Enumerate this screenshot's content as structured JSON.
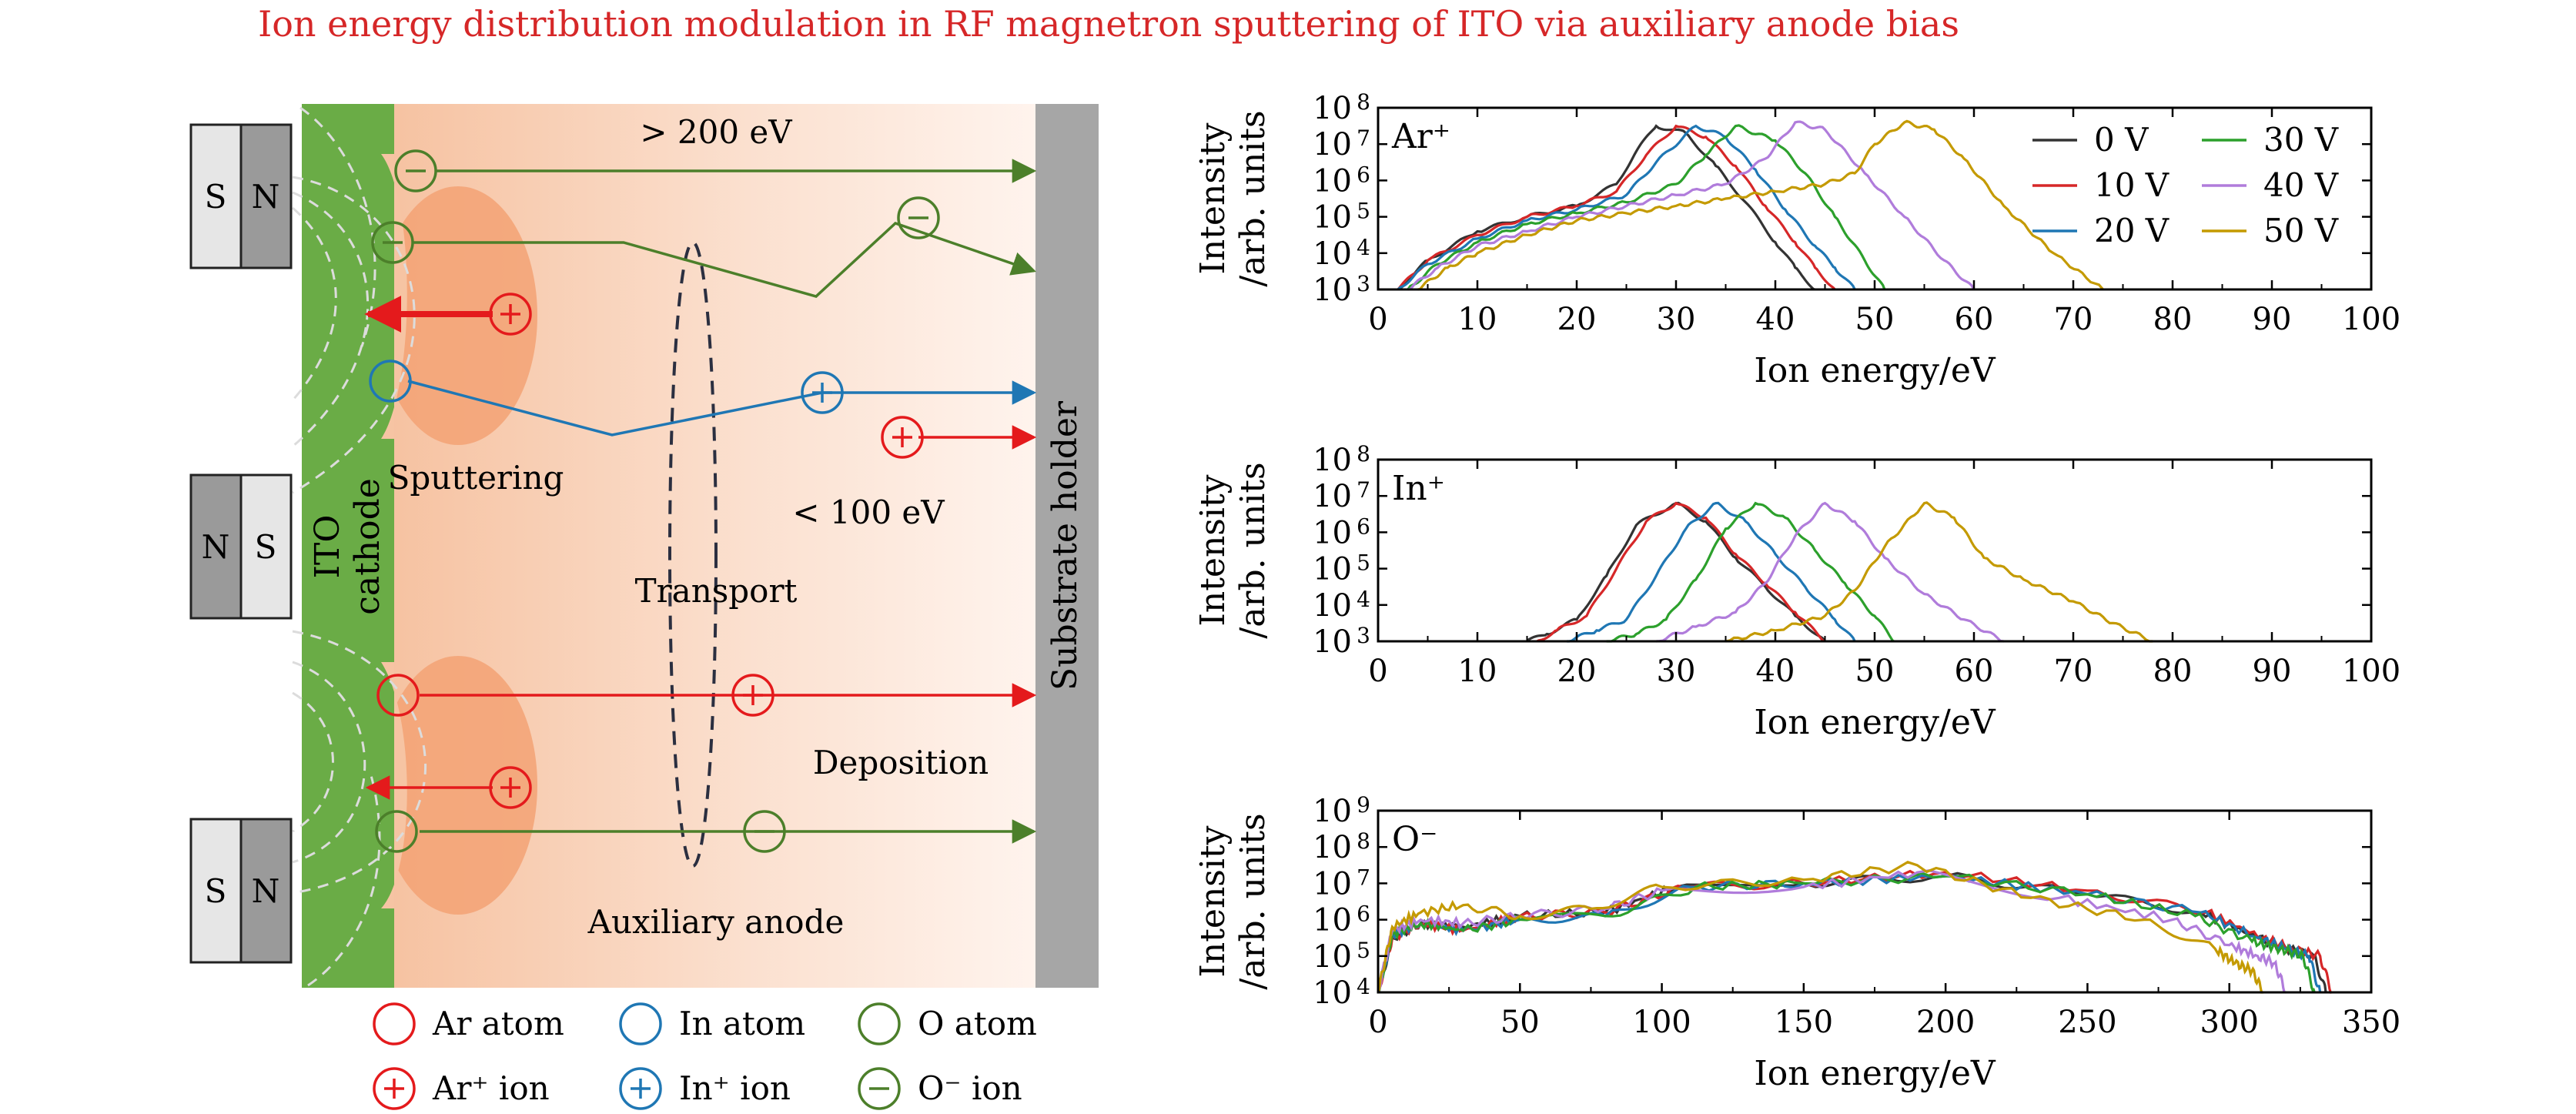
{
  "title": "Ion energy distribution modulation in RF magnetron sputtering of ITO via auxiliary anode bias",
  "colors": {
    "red": "#e41a1c",
    "blue": "#1f77b4",
    "green": "#4c7f2a",
    "cathode": "#6aac46",
    "holder": "#a6a6a6",
    "plasma": "#f4a97c",
    "v0": "#333333",
    "v10": "#d62728",
    "v20": "#1f77b4",
    "v30": "#2ca02c",
    "v40": "#b07cdb",
    "v50": "#c49a00"
  },
  "schematic": {
    "magnets": [
      {
        "left": "S",
        "right": "N"
      },
      {
        "left": "N",
        "right": "S"
      },
      {
        "left": "S",
        "right": "N"
      }
    ],
    "cathode_label_1": "ITO",
    "cathode_label_2": "cathode",
    "holder_label": "Substrate holder",
    "high_energy_label": "> 200 eV",
    "low_energy_label": "< 100 eV",
    "sputtering_label": "Sputtering",
    "transport_label": "Transport",
    "deposition_label": "Deposition",
    "anode_label": "Auxiliary anode",
    "plus_sign": "+",
    "minus_sign": "−"
  },
  "legend": {
    "ar_atom": "Ar atom",
    "in_atom": "In atom",
    "o_atom": "O atom",
    "ar_ion": "Ar⁺ ion",
    "in_ion": "In⁺ ion",
    "o_ion": "O⁻ ion"
  },
  "chart_data": [
    {
      "type": "line",
      "label": "Ar⁺",
      "xlabel": "Ion energy/eV",
      "ylabel_1": "Intensity",
      "ylabel_2": "/arb. units",
      "xlim": [
        0,
        100
      ],
      "xticks": [
        0,
        10,
        20,
        30,
        40,
        50,
        60,
        70,
        80,
        90,
        100
      ],
      "ylim_exp": [
        3,
        8
      ],
      "yticks_exp": [
        3,
        4,
        5,
        6,
        7,
        8
      ],
      "legend_labels": [
        "0  V",
        "10 V",
        "20 V",
        "30 V",
        "40 V",
        "50 V"
      ],
      "series": [
        {
          "name": "0 V",
          "peak": 28,
          "peak_log": 7.5,
          "x": [
            2,
            5,
            10,
            15,
            20,
            24,
            26,
            28,
            31,
            34,
            37,
            40,
            42,
            44
          ],
          "log": [
            3.0,
            3.8,
            4.6,
            5.0,
            5.3,
            5.9,
            6.8,
            7.5,
            7.3,
            6.4,
            5.4,
            4.3,
            3.6,
            3.0
          ]
        },
        {
          "name": "10 V",
          "peak": 30,
          "peak_log": 7.5,
          "x": [
            2,
            5,
            10,
            15,
            20,
            24,
            27,
            30,
            33,
            36,
            39,
            42,
            44,
            46
          ],
          "log": [
            3.0,
            3.8,
            4.5,
            5.0,
            5.3,
            5.7,
            6.7,
            7.5,
            7.2,
            6.4,
            5.3,
            4.3,
            3.6,
            3.0
          ]
        },
        {
          "name": "20 V",
          "peak": 32,
          "peak_log": 7.5,
          "x": [
            2,
            5,
            10,
            15,
            20,
            25,
            28,
            32,
            35,
            38,
            41,
            44,
            46,
            48
          ],
          "log": [
            3.0,
            3.7,
            4.4,
            4.9,
            5.2,
            5.6,
            6.5,
            7.5,
            7.2,
            6.3,
            5.2,
            4.2,
            3.6,
            3.0
          ]
        },
        {
          "name": "30 V",
          "peak": 36,
          "peak_log": 7.5,
          "x": [
            3,
            6,
            10,
            15,
            20,
            25,
            30,
            33,
            36,
            40,
            43,
            46,
            49,
            51
          ],
          "log": [
            3.0,
            3.7,
            4.3,
            4.8,
            5.1,
            5.4,
            5.9,
            6.7,
            7.5,
            7.1,
            6.2,
            5.0,
            3.8,
            3.0
          ]
        },
        {
          "name": "40 V",
          "peak": 42,
          "peak_log": 7.6,
          "x": [
            3,
            6,
            10,
            15,
            20,
            25,
            30,
            35,
            39,
            42,
            45,
            49,
            53,
            57,
            60
          ],
          "log": [
            3.0,
            3.6,
            4.2,
            4.6,
            5.0,
            5.3,
            5.6,
            5.9,
            6.6,
            7.6,
            7.4,
            6.2,
            5.0,
            3.8,
            3.0
          ]
        },
        {
          "name": "50 V",
          "peak": 53,
          "peak_log": 7.6,
          "x": [
            4,
            7,
            10,
            15,
            20,
            25,
            30,
            35,
            40,
            45,
            48,
            50,
            53,
            56,
            59,
            63,
            68,
            73
          ],
          "log": [
            3.0,
            3.6,
            4.0,
            4.5,
            4.9,
            5.1,
            5.3,
            5.5,
            5.7,
            5.9,
            6.2,
            7.0,
            7.6,
            7.4,
            6.6,
            5.3,
            4.0,
            3.0
          ]
        }
      ]
    },
    {
      "type": "line",
      "label": "In⁺",
      "xlabel": "Ion energy/eV",
      "ylabel_1": "Intensity",
      "ylabel_2": "/arb. units",
      "xlim": [
        0,
        100
      ],
      "xticks": [
        0,
        10,
        20,
        30,
        40,
        50,
        60,
        70,
        80,
        90,
        100
      ],
      "ylim_exp": [
        3,
        8
      ],
      "yticks_exp": [
        3,
        4,
        5,
        6,
        7,
        8
      ],
      "series": [
        {
          "name": "0 V",
          "x": [
            15,
            17,
            20,
            23,
            26,
            30,
            33,
            36,
            39,
            42,
            45
          ],
          "log": [
            3.0,
            3.2,
            3.6,
            4.8,
            6.2,
            6.8,
            6.3,
            5.3,
            4.5,
            3.7,
            3.0
          ]
        },
        {
          "name": "10 V",
          "x": [
            16,
            18,
            21,
            24,
            27,
            30,
            33,
            36,
            39,
            42,
            45
          ],
          "log": [
            3.0,
            3.3,
            3.7,
            5.0,
            6.3,
            6.8,
            6.4,
            5.4,
            4.6,
            3.8,
            3.0
          ]
        },
        {
          "name": "20 V",
          "x": [
            19,
            22,
            25,
            28,
            31,
            34,
            37,
            40,
            43,
            46,
            48
          ],
          "log": [
            3.0,
            3.3,
            3.6,
            4.8,
            6.1,
            6.8,
            6.3,
            5.4,
            4.5,
            3.6,
            3.0
          ]
        },
        {
          "name": "30 V",
          "x": [
            23,
            26,
            29,
            32,
            35,
            38,
            41,
            44,
            47,
            50,
            52
          ],
          "log": [
            3.0,
            3.2,
            3.6,
            4.7,
            6.1,
            6.8,
            6.4,
            5.5,
            4.6,
            3.7,
            3.0
          ]
        },
        {
          "name": "40 V",
          "x": [
            28,
            32,
            36,
            39,
            42,
            45,
            48,
            51,
            55,
            59,
            63
          ],
          "log": [
            3.0,
            3.4,
            3.8,
            4.6,
            5.9,
            6.8,
            6.3,
            5.3,
            4.3,
            3.6,
            3.0
          ]
        },
        {
          "name": "50 V",
          "x": [
            35,
            40,
            45,
            48,
            51,
            55,
            58,
            61,
            65,
            70,
            74,
            78
          ],
          "log": [
            3.0,
            3.3,
            3.7,
            4.4,
            5.6,
            6.8,
            6.4,
            5.3,
            4.7,
            4.1,
            3.5,
            3.0
          ]
        }
      ]
    },
    {
      "type": "line",
      "label": "O⁻",
      "xlabel": "Ion energy/eV",
      "ylabel_1": "Intensity",
      "ylabel_2": "/arb. units",
      "xlim": [
        0,
        350
      ],
      "xticks": [
        0,
        50,
        100,
        150,
        200,
        250,
        300,
        350
      ],
      "ylim_exp": [
        4,
        9
      ],
      "yticks_exp": [
        4,
        5,
        6,
        7,
        8,
        9
      ],
      "series": [
        {
          "name": "0 V",
          "x": [
            0,
            5,
            15,
            30,
            50,
            80,
            105,
            150,
            200,
            250,
            290,
            310,
            320,
            330,
            334
          ],
          "log": [
            4.0,
            5.5,
            5.9,
            5.8,
            6.1,
            6.2,
            6.9,
            7.0,
            7.2,
            6.7,
            6.2,
            5.5,
            5.2,
            5.0,
            4.0
          ]
        },
        {
          "name": "10 V",
          "x": [
            0,
            5,
            15,
            30,
            50,
            80,
            108,
            150,
            200,
            250,
            292,
            312,
            322,
            332,
            336
          ],
          "log": [
            4.0,
            5.5,
            5.9,
            5.7,
            6.1,
            6.2,
            6.9,
            7.0,
            7.3,
            6.8,
            6.2,
            5.5,
            5.2,
            5.0,
            4.0
          ]
        },
        {
          "name": "20 V",
          "x": [
            0,
            5,
            15,
            30,
            50,
            80,
            110,
            150,
            200,
            250,
            290,
            310,
            320,
            328,
            332
          ],
          "log": [
            4.0,
            5.6,
            5.9,
            5.7,
            6.0,
            6.1,
            6.9,
            7.0,
            7.2,
            6.7,
            6.2,
            5.5,
            5.2,
            5.0,
            4.0
          ]
        },
        {
          "name": "30 V",
          "x": [
            0,
            5,
            15,
            30,
            50,
            80,
            112,
            150,
            200,
            250,
            288,
            308,
            318,
            326,
            330
          ],
          "log": [
            4.0,
            5.6,
            5.9,
            5.7,
            6.0,
            6.1,
            6.9,
            7.0,
            7.2,
            6.7,
            6.1,
            5.4,
            5.2,
            5.0,
            4.0
          ]
        },
        {
          "name": "40 V",
          "x": [
            0,
            5,
            15,
            30,
            50,
            80,
            100,
            150,
            190,
            240,
            280,
            300,
            310,
            316,
            320
          ],
          "log": [
            4.0,
            5.7,
            6.0,
            5.9,
            6.1,
            6.3,
            6.8,
            6.9,
            7.3,
            6.6,
            6.0,
            5.3,
            5.0,
            4.8,
            4.0
          ]
        },
        {
          "name": "50 V",
          "x": [
            0,
            5,
            15,
            30,
            50,
            75,
            100,
            150,
            190,
            230,
            270,
            295,
            302,
            308,
            312
          ],
          "log": [
            4.0,
            5.8,
            6.2,
            6.4,
            6.1,
            6.3,
            6.9,
            7.1,
            7.5,
            6.6,
            6.0,
            5.2,
            4.8,
            4.6,
            4.0
          ]
        }
      ]
    }
  ]
}
